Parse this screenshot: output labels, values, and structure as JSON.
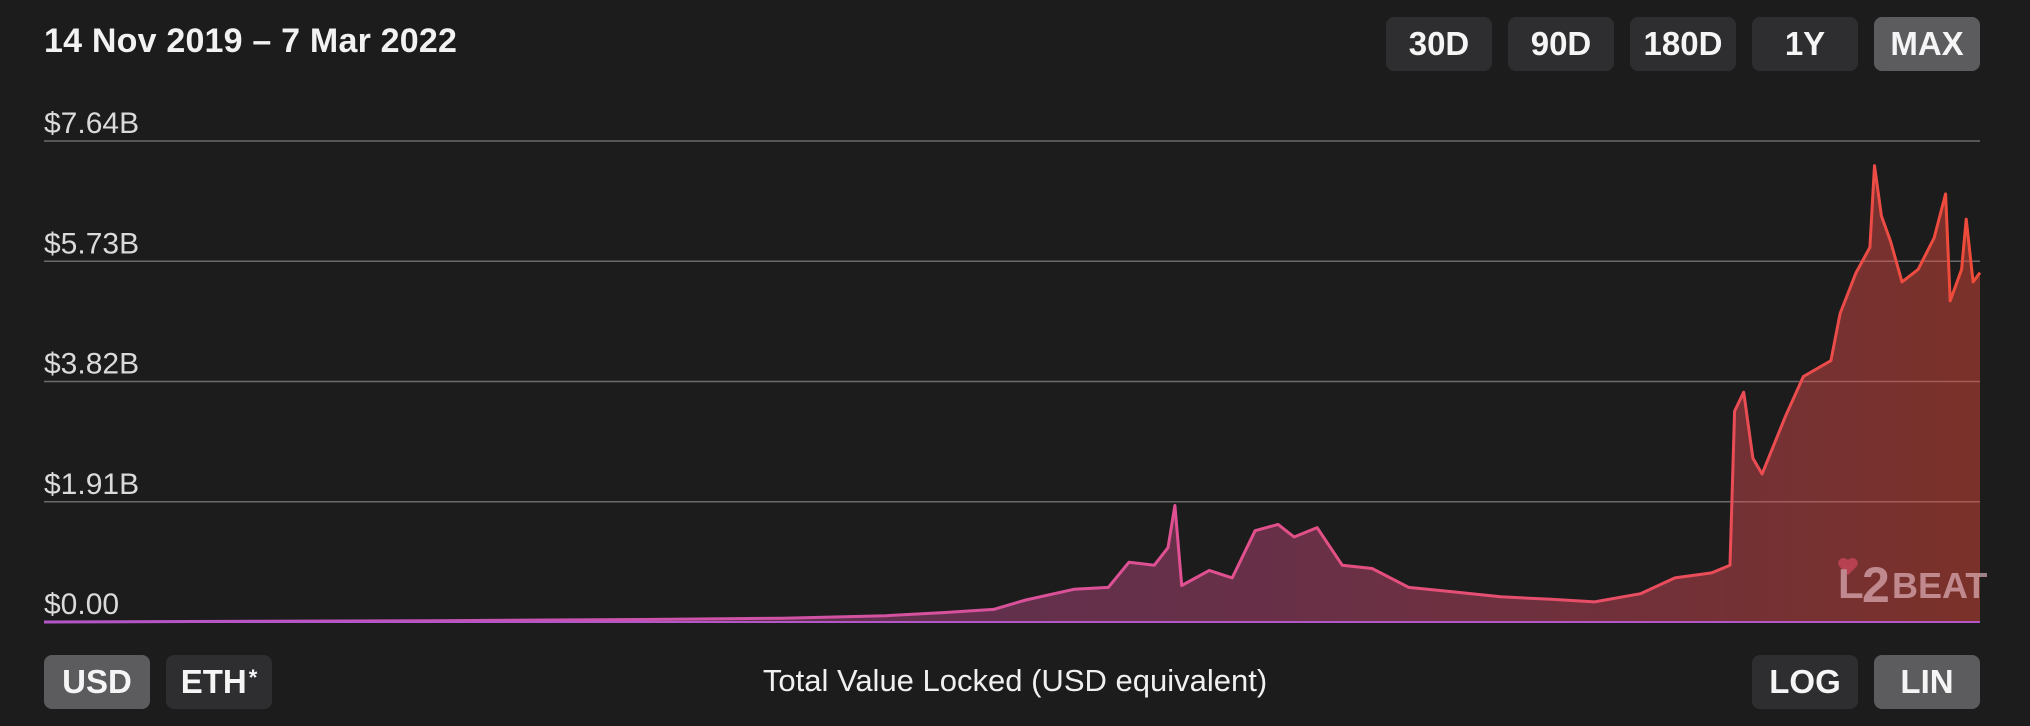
{
  "header": {
    "date_range": "14 Nov 2019 – 7 Mar 2022",
    "range_buttons": [
      {
        "label": "30D",
        "active": false
      },
      {
        "label": "90D",
        "active": false
      },
      {
        "label": "180D",
        "active": false
      },
      {
        "label": "1Y",
        "active": false
      },
      {
        "label": "MAX",
        "active": true
      }
    ]
  },
  "footer": {
    "currency_buttons": [
      {
        "label": "USD",
        "active": true
      },
      {
        "label": "ETH",
        "sup": "*",
        "active": false
      }
    ],
    "caption": "Total Value Locked (USD equivalent)",
    "scale_buttons": [
      {
        "label": "LOG",
        "active": false
      },
      {
        "label": "LIN",
        "active": true
      }
    ]
  },
  "logo": {
    "text_l": "L",
    "text_2": "2",
    "text_beat": "BEAT"
  },
  "colors": {
    "background": "#1c1c1d",
    "line_start": "#b455c8",
    "line_mid": "#e2508f",
    "line_end": "#ee4b38",
    "grid": "#6a6a6d"
  },
  "chart_data": {
    "type": "area",
    "title": "",
    "xlabel": "",
    "ylabel": "",
    "x_start": "2019-11-14",
    "x_end": "2022-03-07",
    "ylim": [
      0,
      7.64
    ],
    "y_ticks": [
      {
        "value": 0,
        "label": "$0.00"
      },
      {
        "value": 1.91,
        "label": "$1.91B"
      },
      {
        "value": 3.82,
        "label": "$3.82B"
      },
      {
        "value": 5.73,
        "label": "$5.73B"
      },
      {
        "value": 7.64,
        "label": "$7.64B"
      }
    ],
    "grid": true,
    "scale": "linear",
    "series": [
      {
        "values_unit": "USD billions",
        "points": [
          [
            "2019-11-14",
            0.0
          ],
          [
            "2020-02-01",
            0.01
          ],
          [
            "2020-05-01",
            0.02
          ],
          [
            "2020-08-01",
            0.04
          ],
          [
            "2020-10-01",
            0.06
          ],
          [
            "2020-11-15",
            0.1
          ],
          [
            "2020-12-10",
            0.15
          ],
          [
            "2021-01-01",
            0.2
          ],
          [
            "2021-01-15",
            0.35
          ],
          [
            "2021-02-05",
            0.52
          ],
          [
            "2021-02-20",
            0.55
          ],
          [
            "2021-03-01",
            0.95
          ],
          [
            "2021-03-12",
            0.9
          ],
          [
            "2021-03-18",
            1.18
          ],
          [
            "2021-03-21",
            1.85
          ],
          [
            "2021-03-24",
            0.58
          ],
          [
            "2021-04-05",
            0.82
          ],
          [
            "2021-04-15",
            0.7
          ],
          [
            "2021-04-25",
            1.45
          ],
          [
            "2021-05-05",
            1.55
          ],
          [
            "2021-05-12",
            1.35
          ],
          [
            "2021-05-22",
            1.5
          ],
          [
            "2021-06-02",
            0.9
          ],
          [
            "2021-06-15",
            0.85
          ],
          [
            "2021-07-01",
            0.55
          ],
          [
            "2021-07-20",
            0.48
          ],
          [
            "2021-08-10",
            0.4
          ],
          [
            "2021-09-01",
            0.36
          ],
          [
            "2021-09-20",
            0.32
          ],
          [
            "2021-10-10",
            0.45
          ],
          [
            "2021-10-25",
            0.7
          ],
          [
            "2021-11-10",
            0.78
          ],
          [
            "2021-11-18",
            0.9
          ],
          [
            "2021-11-20",
            3.35
          ],
          [
            "2021-11-24",
            3.65
          ],
          [
            "2021-11-28",
            2.6
          ],
          [
            "2021-12-02",
            2.35
          ],
          [
            "2021-12-12",
            3.25
          ],
          [
            "2021-12-20",
            3.9
          ],
          [
            "2022-01-01",
            4.15
          ],
          [
            "2022-01-05",
            4.9
          ],
          [
            "2022-01-12",
            5.55
          ],
          [
            "2022-01-18",
            5.95
          ],
          [
            "2022-01-20",
            7.25
          ],
          [
            "2022-01-23",
            6.45
          ],
          [
            "2022-01-27",
            6.05
          ],
          [
            "2022-02-01",
            5.4
          ],
          [
            "2022-02-08",
            5.6
          ],
          [
            "2022-02-15",
            6.1
          ],
          [
            "2022-02-20",
            6.8
          ],
          [
            "2022-02-22",
            5.1
          ],
          [
            "2022-02-27",
            5.6
          ],
          [
            "2022-03-01",
            6.4
          ],
          [
            "2022-03-04",
            5.4
          ],
          [
            "2022-03-07",
            5.55
          ]
        ]
      }
    ]
  }
}
